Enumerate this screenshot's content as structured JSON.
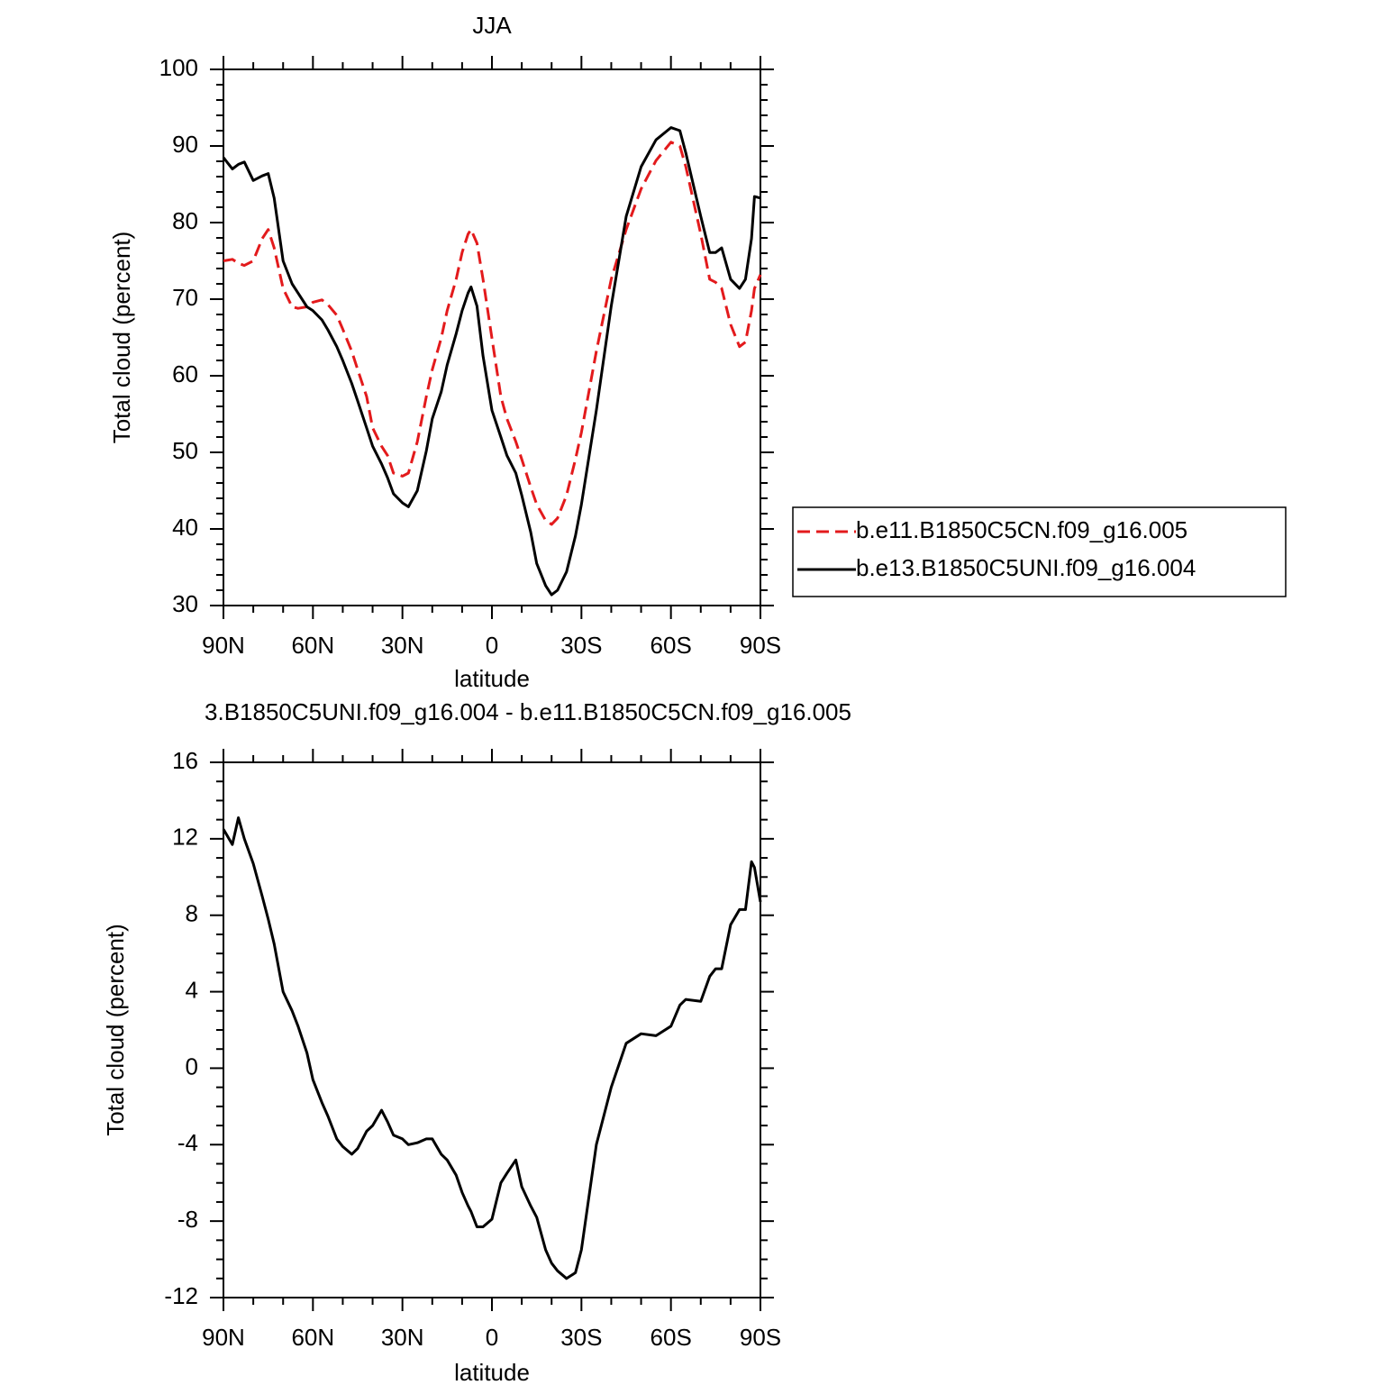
{
  "chart_data": [
    {
      "type": "line",
      "title": "JJA",
      "x_label": "latitude",
      "y_label": "Total cloud (percent)",
      "x": [
        90,
        87,
        85,
        83,
        80,
        77,
        75,
        73,
        70,
        67,
        65,
        62,
        60,
        57,
        55,
        52,
        50,
        47,
        45,
        42,
        40,
        37,
        35,
        33,
        30,
        28,
        25,
        22,
        20,
        17,
        15,
        12,
        10,
        8,
        7,
        5,
        3,
        0,
        -3,
        -5,
        -8,
        -10,
        -13,
        -15,
        -18,
        -20,
        -22,
        -25,
        -28,
        -30,
        -35,
        -40,
        -45,
        -50,
        -55,
        -60,
        -63,
        -65,
        -70,
        -73,
        -75,
        -77,
        -80,
        -83,
        -85,
        -87,
        -88,
        -90
      ],
      "series": [
        {
          "name": "b.e11.B1850C5CN.f09_g16.005",
          "color": "#e31a1c",
          "line_style": "dashed",
          "values": [
            75,
            75.2,
            74.7,
            74.4,
            75,
            77.9,
            79.1,
            76.7,
            71.4,
            69,
            68.8,
            69,
            69.6,
            69.9,
            69.3,
            67.9,
            66.1,
            63.2,
            60.8,
            57.3,
            53.2,
            50.8,
            49.6,
            47.3,
            46.9,
            47.3,
            51.4,
            57.3,
            60.8,
            64.9,
            68.5,
            72.6,
            76.1,
            78.5,
            79.1,
            77.3,
            72.6,
            64.9,
            57.3,
            54.4,
            51.4,
            49.1,
            45.5,
            43.2,
            41.1,
            40.6,
            41.4,
            44.4,
            49.1,
            52.6,
            63.2,
            72.6,
            79.1,
            84.4,
            88.1,
            90.5,
            90,
            87.3,
            78.5,
            72.6,
            72.2,
            71.4,
            66.7,
            63.8,
            64.4,
            68.5,
            71.4,
            73.2
          ]
        },
        {
          "name": "b.e13.B1850C5UNI.f09_g16.004",
          "color": "#000000",
          "line_style": "solid",
          "values": [
            88.5,
            87,
            87.6,
            87.9,
            85.5,
            86.1,
            86.4,
            83.2,
            75,
            72,
            70.8,
            69,
            68.5,
            67.3,
            66,
            63.8,
            62,
            59,
            56.7,
            53.2,
            50.8,
            48.5,
            46.7,
            44.6,
            43.4,
            42.9,
            45,
            50.2,
            54.4,
            57.9,
            61.4,
            65.5,
            68.5,
            70.8,
            71.6,
            69.1,
            62.6,
            55.5,
            52,
            49.6,
            47.3,
            44.4,
            39.6,
            35.5,
            32.6,
            31.4,
            32,
            34.4,
            39.1,
            43.2,
            55.5,
            69.1,
            80.8,
            87.3,
            90.8,
            92.4,
            92,
            89.1,
            80.8,
            76.1,
            76.1,
            76.7,
            72.6,
            71.4,
            72.6,
            77.9,
            83.4,
            83.2
          ]
        }
      ],
      "xlim": [
        90,
        -90
      ],
      "xticks": [
        {
          "value": 90,
          "label": "90N"
        },
        {
          "value": 60,
          "label": "60N"
        },
        {
          "value": 30,
          "label": "30N"
        },
        0,
        {
          "value": -30,
          "label": "30S"
        },
        {
          "value": -60,
          "label": "60S"
        },
        {
          "value": -90,
          "label": "90S"
        }
      ],
      "xminorticks": [
        80,
        70,
        50,
        40,
        20,
        10,
        -10,
        -20,
        -40,
        -50,
        -70,
        -80
      ],
      "ylim": [
        30,
        100
      ],
      "yticks": [
        30,
        40,
        50,
        60,
        70,
        80,
        90,
        100
      ],
      "yminorticks": [
        32,
        34,
        36,
        38,
        42,
        44,
        46,
        48,
        52,
        54,
        56,
        58,
        62,
        64,
        66,
        68,
        72,
        74,
        76,
        78,
        82,
        84,
        86,
        88,
        92,
        94,
        96,
        98
      ],
      "legend": "right",
      "grid": false
    },
    {
      "type": "line",
      "title": "3.B1850C5UNI.f09_g16.004 - b.e11.B1850C5CN.f09_g16.005",
      "x_label": "latitude",
      "y_label": "Total cloud (percent)",
      "x": [
        90,
        87,
        85,
        83,
        80,
        77,
        75,
        73,
        70,
        67,
        65,
        62,
        60,
        57,
        55,
        52,
        50,
        47,
        45,
        42,
        40,
        37,
        35,
        33,
        30,
        28,
        25,
        22,
        20,
        17,
        15,
        12,
        10,
        8,
        7,
        5,
        3,
        0,
        -3,
        -5,
        -8,
        -10,
        -13,
        -15,
        -18,
        -20,
        -22,
        -25,
        -28,
        -30,
        -35,
        -40,
        -45,
        -50,
        -55,
        -60,
        -63,
        -65,
        -70,
        -73,
        -75,
        -77,
        -80,
        -83,
        -85,
        -87,
        -88,
        -90
      ],
      "series": [
        {
          "color": "#000000",
          "line_style": "solid",
          "values": [
            12.5,
            11.7,
            13.1,
            12,
            10.7,
            9,
            7.8,
            6.5,
            4,
            3,
            2.2,
            0.8,
            -0.6,
            -1.8,
            -2.5,
            -3.7,
            -4.1,
            -4.5,
            -4.2,
            -3.3,
            -3,
            -2.2,
            -2.8,
            -3.5,
            -3.7,
            -4,
            -3.9,
            -3.7,
            -3.7,
            -4.5,
            -4.8,
            -5.6,
            -6.5,
            -7.2,
            -7.5,
            -8.3,
            -8.3,
            -7.9,
            -6,
            -5.5,
            -4.8,
            -6.2,
            -7.2,
            -7.8,
            -9.5,
            -10.2,
            -10.6,
            -11,
            -10.7,
            -9.5,
            -4,
            -1,
            1.3,
            1.8,
            1.7,
            2.2,
            3.3,
            3.6,
            3.5,
            4.8,
            5.2,
            5.2,
            7.5,
            8.3,
            8.3,
            10.8,
            10.5,
            8.7
          ]
        }
      ],
      "xlim": [
        90,
        -90
      ],
      "xticks": [
        {
          "value": 90,
          "label": "90N"
        },
        {
          "value": 60,
          "label": "60N"
        },
        {
          "value": 30,
          "label": "30N"
        },
        0,
        {
          "value": -30,
          "label": "30S"
        },
        {
          "value": -60,
          "label": "60S"
        },
        {
          "value": -90,
          "label": "90S"
        }
      ],
      "xminorticks": [
        80,
        70,
        50,
        40,
        20,
        10,
        -10,
        -20,
        -40,
        -50,
        -70,
        -80
      ],
      "ylim": [
        -12,
        16
      ],
      "yticks": [
        -12,
        -8,
        -4,
        0,
        4,
        8,
        12,
        16
      ],
      "yminorticks": [
        -11,
        -10,
        -9,
        -7,
        -6,
        -5,
        -3,
        -2,
        -1,
        1,
        2,
        3,
        5,
        6,
        7,
        9,
        10,
        11,
        13,
        14,
        15
      ],
      "grid": false
    }
  ]
}
